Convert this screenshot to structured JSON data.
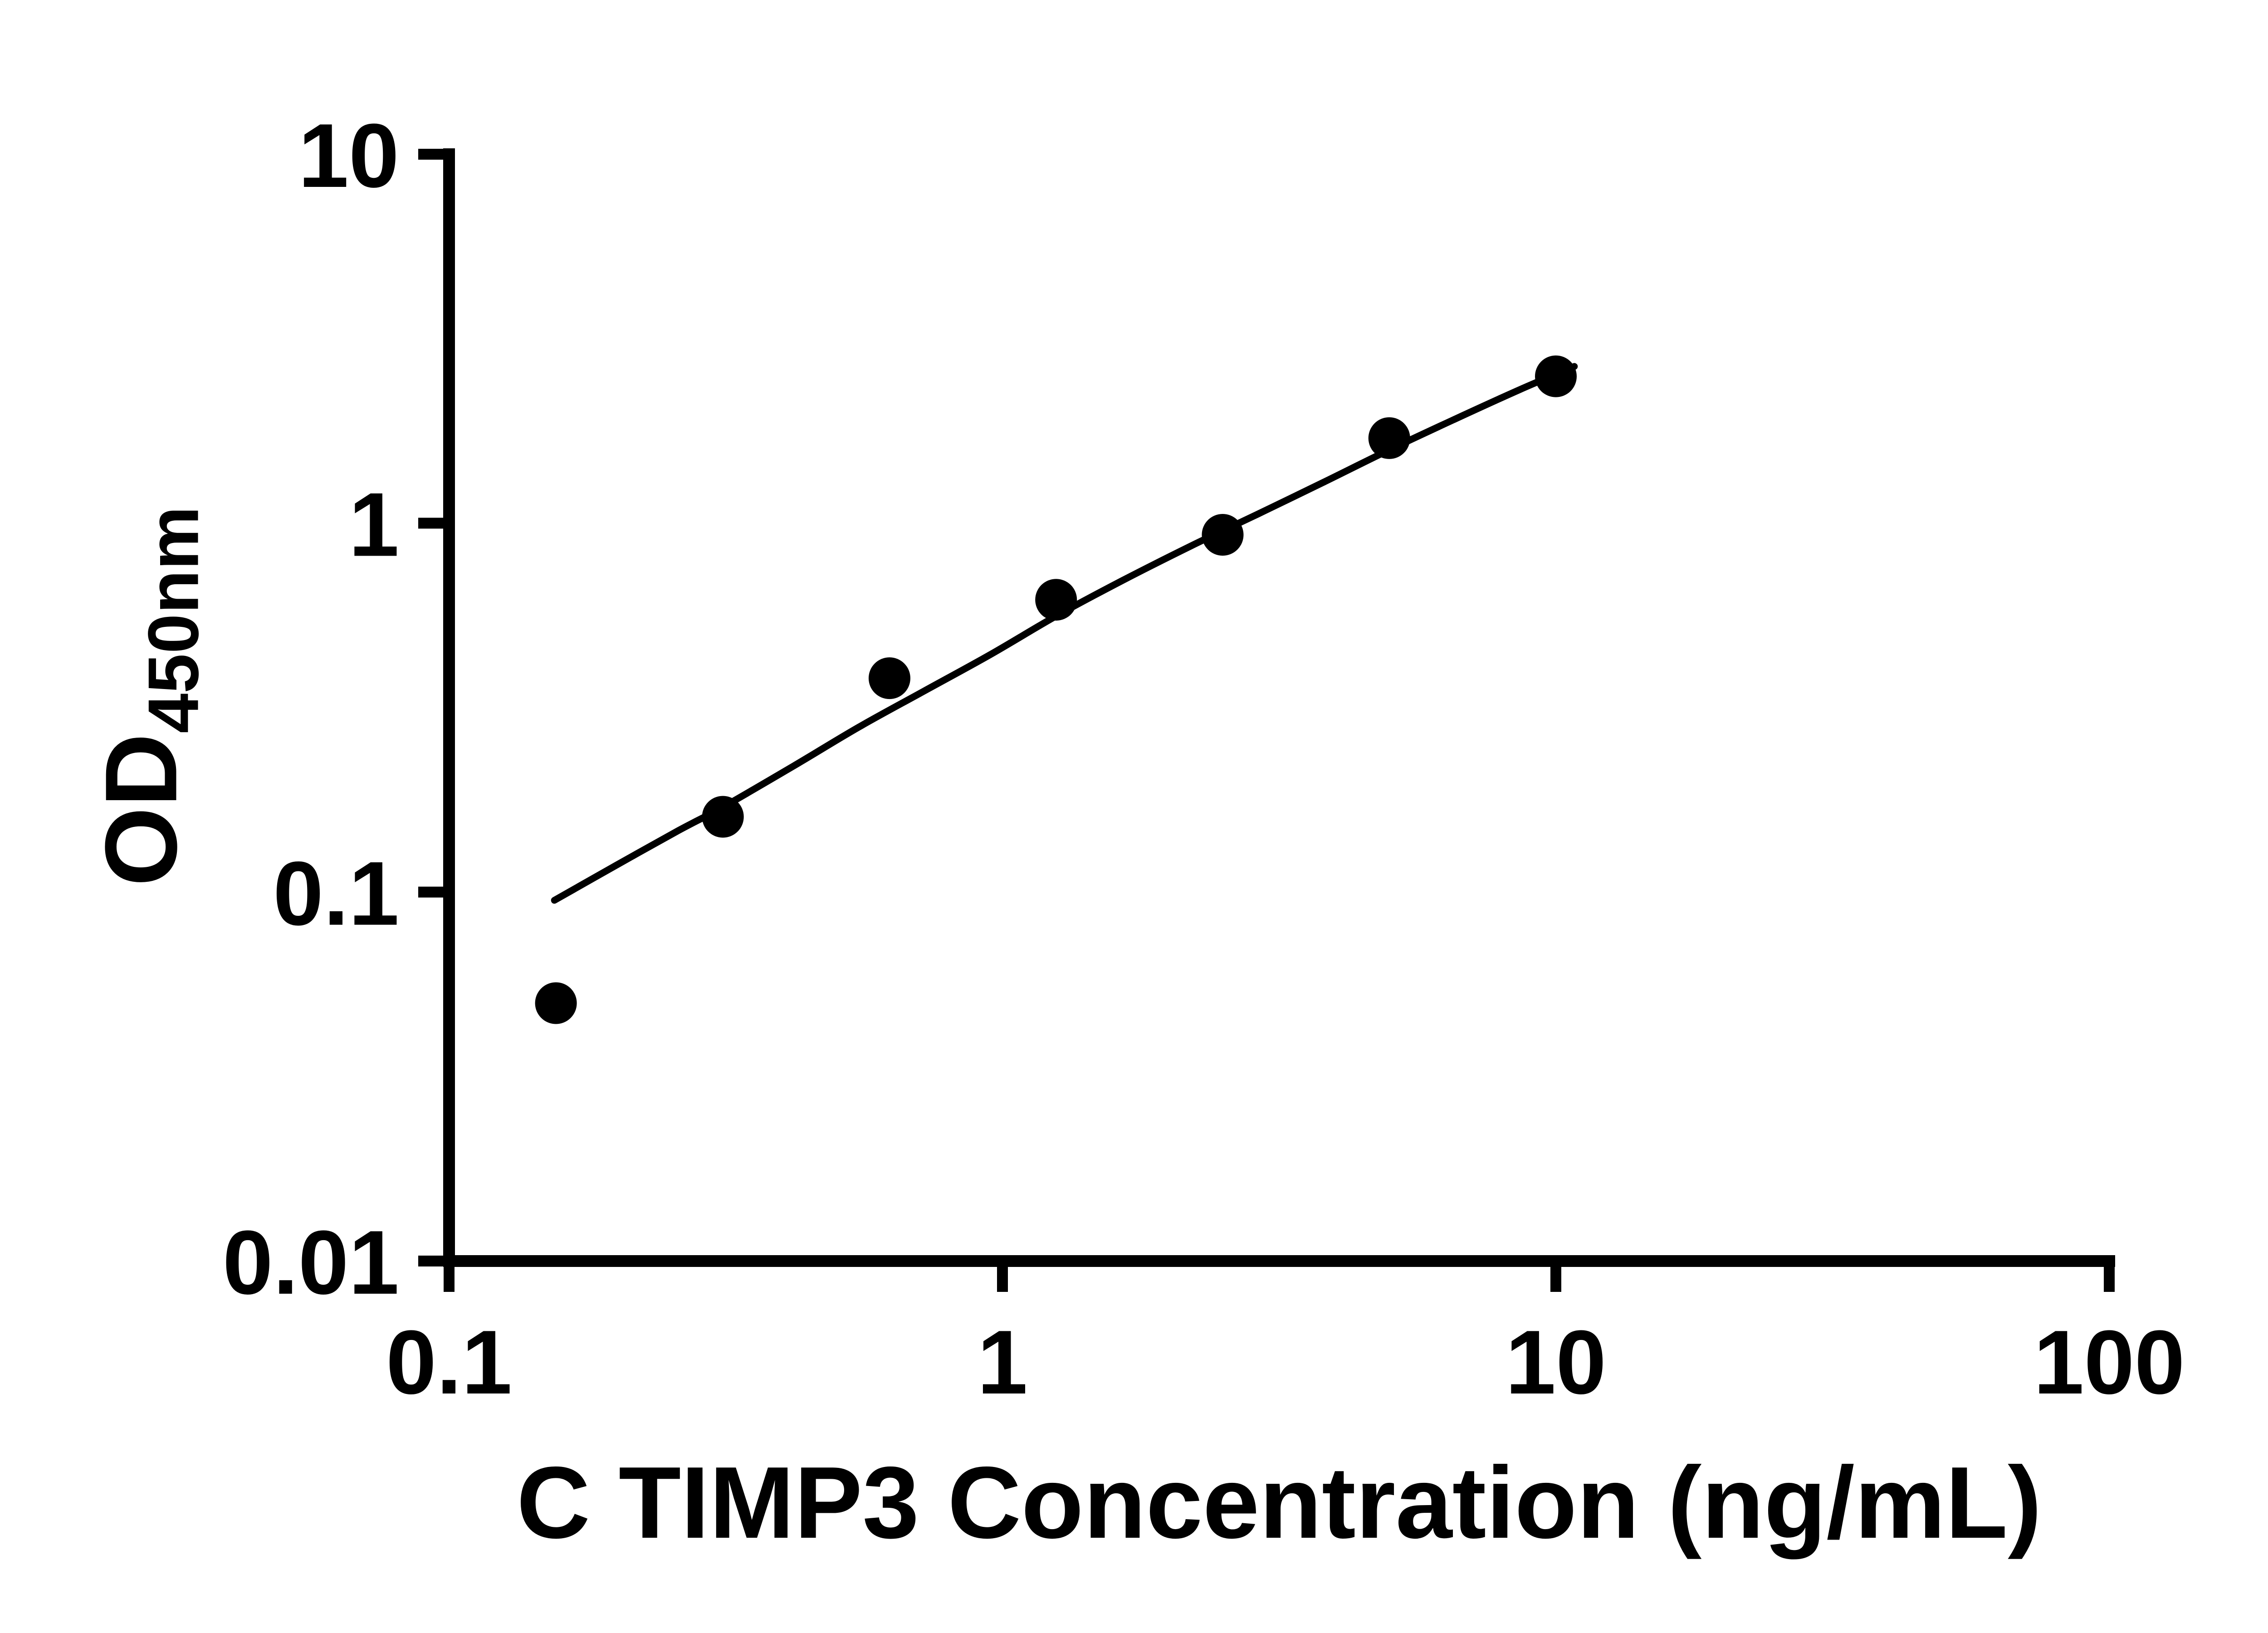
{
  "figure": {
    "background_color": "#ffffff",
    "ink_color": "#000000"
  },
  "chart_data": {
    "type": "scatter",
    "title": "",
    "xlabel": "C TIMP3 Concentration (ng/mL)",
    "ylabel": "OD450nm",
    "ylabel_main": "OD",
    "ylabel_subscript": "450nm",
    "x_scale": "log10",
    "y_scale": "log10",
    "xlim": [
      0.1,
      100
    ],
    "ylim": [
      0.01,
      10
    ],
    "x_ticks": [
      0.1,
      1,
      10,
      100
    ],
    "x_tick_labels": [
      "0.1",
      "1",
      "10",
      "100"
    ],
    "y_ticks": [
      0.01,
      0.1,
      1,
      10
    ],
    "y_tick_labels": [
      "0.01",
      "0.1",
      "1",
      "10"
    ],
    "grid": false,
    "legend": "none",
    "marker": {
      "shape": "filled-circle",
      "color": "#000000"
    },
    "line_color": "#000000",
    "series": [
      {
        "name": "standards",
        "type": "scatter",
        "points": [
          {
            "x": 0.156,
            "y": 0.05
          },
          {
            "x": 0.3125,
            "y": 0.16
          },
          {
            "x": 0.625,
            "y": 0.38
          },
          {
            "x": 1.25,
            "y": 0.62
          },
          {
            "x": 2.5,
            "y": 0.93
          },
          {
            "x": 5,
            "y": 1.7
          },
          {
            "x": 10,
            "y": 2.5
          }
        ]
      },
      {
        "name": "fit-curve",
        "type": "line",
        "points": [
          {
            "x": 0.155,
            "y": 0.095
          },
          {
            "x": 0.2,
            "y": 0.118
          },
          {
            "x": 0.26,
            "y": 0.147
          },
          {
            "x": 0.3125,
            "y": 0.17
          },
          {
            "x": 0.42,
            "y": 0.22
          },
          {
            "x": 0.55,
            "y": 0.28
          },
          {
            "x": 0.72,
            "y": 0.35
          },
          {
            "x": 0.95,
            "y": 0.44
          },
          {
            "x": 1.25,
            "y": 0.56
          },
          {
            "x": 1.65,
            "y": 0.7
          },
          {
            "x": 2.2,
            "y": 0.87
          },
          {
            "x": 2.9,
            "y": 1.06
          },
          {
            "x": 3.8,
            "y": 1.29
          },
          {
            "x": 5.0,
            "y": 1.58
          },
          {
            "x": 6.6,
            "y": 1.92
          },
          {
            "x": 8.6,
            "y": 2.3
          },
          {
            "x": 10.8,
            "y": 2.66
          }
        ]
      }
    ]
  }
}
